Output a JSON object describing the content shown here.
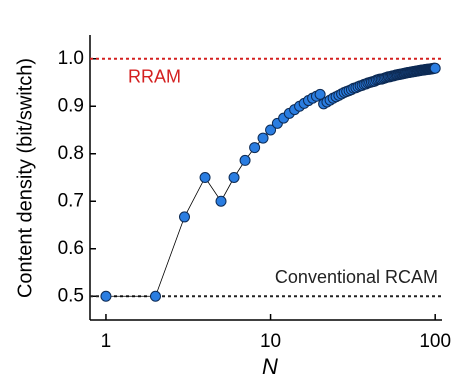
{
  "chart_data": {
    "type": "line",
    "x_label": "N",
    "y_label": "Content density (bit/switch)",
    "x": [
      1,
      2,
      3,
      4,
      5,
      6,
      7,
      8,
      9,
      10,
      11,
      12,
      13,
      14,
      15,
      16,
      17,
      18,
      19,
      20,
      21,
      22,
      23,
      24,
      25,
      26,
      27,
      28,
      29,
      30,
      31,
      32,
      33,
      34,
      35,
      36,
      37,
      38,
      39,
      40,
      41,
      42,
      43,
      44,
      45,
      46,
      47,
      48,
      49,
      50,
      51,
      52,
      53,
      54,
      55,
      56,
      57,
      58,
      59,
      60,
      61,
      62,
      63,
      64,
      65,
      66,
      67,
      68,
      69,
      70,
      71,
      72,
      73,
      74,
      75,
      76,
      77,
      78,
      79,
      80,
      81,
      82,
      83,
      84,
      85,
      86,
      87,
      88,
      89,
      90,
      91,
      92,
      93,
      94,
      95,
      96,
      97,
      98,
      99,
      100
    ],
    "series": [
      {
        "color": "#2a7de1",
        "values": [
          0.5,
          0.5,
          0.667,
          0.75,
          0.7,
          0.75,
          0.786,
          0.813,
          0.833,
          0.85,
          0.864,
          0.875,
          0.885,
          0.893,
          0.9,
          0.906,
          0.912,
          0.917,
          0.921,
          0.925,
          0.905,
          0.909,
          0.913,
          0.917,
          0.92,
          0.923,
          0.926,
          0.929,
          0.931,
          0.933,
          0.935,
          0.938,
          0.939,
          0.941,
          0.943,
          0.944,
          0.946,
          0.947,
          0.949,
          0.95,
          0.951,
          0.952,
          0.953,
          0.955,
          0.956,
          0.957,
          0.957,
          0.958,
          0.959,
          0.96,
          0.961,
          0.962,
          0.962,
          0.963,
          0.964,
          0.964,
          0.965,
          0.966,
          0.966,
          0.967,
          0.967,
          0.968,
          0.968,
          0.969,
          0.969,
          0.97,
          0.97,
          0.971,
          0.971,
          0.971,
          0.972,
          0.972,
          0.973,
          0.973,
          0.973,
          0.974,
          0.974,
          0.974,
          0.975,
          0.975,
          0.975,
          0.976,
          0.976,
          0.976,
          0.976,
          0.977,
          0.977,
          0.977,
          0.978,
          0.978,
          0.978,
          0.978,
          0.978,
          0.979,
          0.979,
          0.979,
          0.979,
          0.98,
          0.98,
          0.98
        ]
      }
    ],
    "reference_lines": [
      {
        "label": "RRAM",
        "value": 1,
        "color": "#d42020"
      },
      {
        "label": "Conventional RCAM",
        "value": 0.5,
        "color": "#222222"
      }
    ],
    "xscale": "log",
    "xlim": [
      0.8,
      110
    ],
    "xticks": [
      1,
      10,
      100
    ],
    "ylim": [
      0.45,
      1.05
    ],
    "yticks": [
      0.5,
      0.6,
      0.7,
      0.8,
      0.9,
      {
        "value": 1,
        "label": "1.0"
      }
    ]
  }
}
